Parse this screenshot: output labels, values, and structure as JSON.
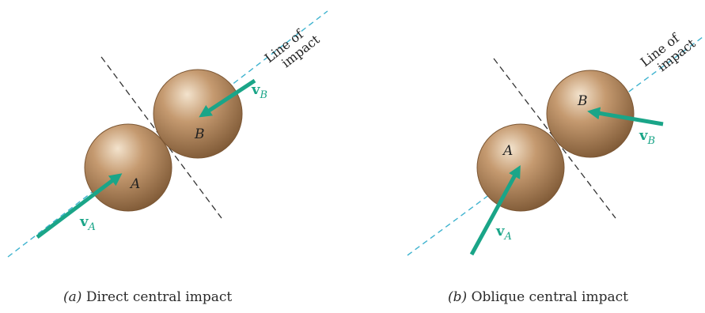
{
  "colors": {
    "sphere_light": "#f3e3cd",
    "sphere_mid": "#c59a70",
    "sphere_dark": "#7c5734",
    "arrow": "#1aa588",
    "line_of_impact": "#3fb3cf",
    "tangent": "#333333"
  },
  "panel_a": {
    "sphere_a_label": "A",
    "sphere_b_label": "B",
    "velocity_a": {
      "symbol": "v",
      "subscript": "A"
    },
    "velocity_b": {
      "symbol": "v",
      "subscript": "B"
    },
    "line_label": [
      "Line of",
      "impact"
    ],
    "caption_tag": "(a)",
    "caption_text": "Direct central impact"
  },
  "panel_b": {
    "sphere_a_label": "A",
    "sphere_b_label": "B",
    "velocity_a": {
      "symbol": "v",
      "subscript": "A"
    },
    "velocity_b": {
      "symbol": "v",
      "subscript": "B"
    },
    "line_label": [
      "Line of",
      "impact"
    ],
    "caption_tag": "(b)",
    "caption_text": "Oblique central impact"
  }
}
